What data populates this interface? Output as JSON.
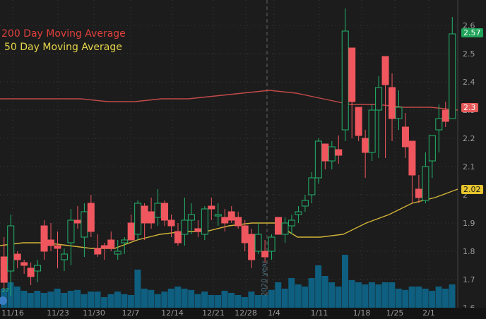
{
  "legend": {
    "ma200_label": "200 Day Moving Average",
    "ma50_label": "50 Day Moving Average",
    "ma200_color": "#e0403c",
    "ma50_color": "#e6d54a"
  },
  "price_tags": {
    "last": "2.57",
    "ma200": "2.3",
    "ma50": "2.02",
    "last_color": "#1fa35a",
    "ma200_color": "#e65a5a",
    "ma50_color": "#e6c42e"
  },
  "year_marker": "2020 year",
  "badge_text": ".27",
  "colors": {
    "background": "#1c1c1c",
    "up": "#22b36b",
    "down": "#f0565e",
    "volume": "#0e5f80",
    "grid": "#3a3a3a"
  },
  "chart_data": {
    "type": "candlestick",
    "title": "",
    "xlabel": "",
    "ylabel": "",
    "ylim": [
      1.6,
      2.65
    ],
    "y_ticks": [
      "2.6",
      "2.5",
      "2.4",
      "2.3",
      "2.2",
      "2.1",
      "2",
      "1.9",
      "1.8",
      "1.7",
      "1.6"
    ],
    "x_ticks": [
      "11/16",
      "11/23",
      "11/30",
      "12/7",
      "12/14",
      "12/21",
      "12/28",
      "1/4",
      "1/11",
      "1/18",
      "1/25",
      "2/1"
    ],
    "grid": true,
    "legend_position": "top-left",
    "candles": [
      {
        "o": 1.78,
        "h": 1.85,
        "l": 1.66,
        "c": 1.69
      },
      {
        "o": 1.73,
        "h": 1.93,
        "l": 1.64,
        "c": 1.89
      },
      {
        "o": 1.79,
        "h": 1.8,
        "l": 1.74,
        "c": 1.77
      },
      {
        "o": 1.76,
        "h": 1.77,
        "l": 1.72,
        "c": 1.75
      },
      {
        "o": 1.74,
        "h": 1.76,
        "l": 1.68,
        "c": 1.71
      },
      {
        "o": 1.73,
        "h": 1.77,
        "l": 1.69,
        "c": 1.75
      },
      {
        "o": 1.89,
        "h": 1.91,
        "l": 1.77,
        "c": 1.8
      },
      {
        "o": 1.84,
        "h": 1.9,
        "l": 1.8,
        "c": 1.82
      },
      {
        "o": 1.82,
        "h": 1.87,
        "l": 1.74,
        "c": 1.81
      },
      {
        "o": 1.77,
        "h": 1.81,
        "l": 1.73,
        "c": 1.79
      },
      {
        "o": 1.83,
        "h": 1.95,
        "l": 1.75,
        "c": 1.91
      },
      {
        "o": 1.91,
        "h": 1.96,
        "l": 1.88,
        "c": 1.9
      },
      {
        "o": 1.85,
        "h": 1.97,
        "l": 1.78,
        "c": 1.94
      },
      {
        "o": 1.97,
        "h": 2.0,
        "l": 1.85,
        "c": 1.87
      },
      {
        "o": 1.81,
        "h": 1.86,
        "l": 1.78,
        "c": 1.79
      },
      {
        "o": 1.82,
        "h": 1.83,
        "l": 1.77,
        "c": 1.81
      },
      {
        "o": 1.84,
        "h": 1.87,
        "l": 1.8,
        "c": 1.81
      },
      {
        "o": 1.79,
        "h": 1.84,
        "l": 1.77,
        "c": 1.8
      },
      {
        "o": 1.83,
        "h": 1.85,
        "l": 1.79,
        "c": 1.84
      },
      {
        "o": 1.9,
        "h": 1.93,
        "l": 1.87,
        "c": 1.84
      },
      {
        "o": 1.86,
        "h": 1.98,
        "l": 1.84,
        "c": 1.97
      },
      {
        "o": 1.96,
        "h": 1.97,
        "l": 1.84,
        "c": 1.9
      },
      {
        "o": 1.94,
        "h": 1.99,
        "l": 1.88,
        "c": 1.9
      },
      {
        "o": 1.92,
        "h": 2.02,
        "l": 1.89,
        "c": 1.97
      },
      {
        "o": 1.97,
        "h": 1.98,
        "l": 1.89,
        "c": 1.91
      },
      {
        "o": 1.91,
        "h": 1.93,
        "l": 1.85,
        "c": 1.89
      },
      {
        "o": 1.87,
        "h": 1.9,
        "l": 1.82,
        "c": 1.83
      },
      {
        "o": 1.86,
        "h": 1.99,
        "l": 1.82,
        "c": 1.91
      },
      {
        "o": 1.91,
        "h": 1.97,
        "l": 1.86,
        "c": 1.93
      },
      {
        "o": 1.88,
        "h": 1.91,
        "l": 1.85,
        "c": 1.87
      },
      {
        "o": 1.86,
        "h": 1.96,
        "l": 1.84,
        "c": 1.95
      },
      {
        "o": 1.96,
        "h": 1.99,
        "l": 1.91,
        "c": 1.95
      },
      {
        "o": 1.93,
        "h": 1.97,
        "l": 1.89,
        "c": 1.93
      },
      {
        "o": 1.92,
        "h": 1.95,
        "l": 1.87,
        "c": 1.9
      },
      {
        "o": 1.94,
        "h": 1.96,
        "l": 1.9,
        "c": 1.91
      },
      {
        "o": 1.92,
        "h": 1.94,
        "l": 1.88,
        "c": 1.89
      },
      {
        "o": 1.89,
        "h": 1.91,
        "l": 1.8,
        "c": 1.83
      },
      {
        "o": 1.86,
        "h": 1.88,
        "l": 1.74,
        "c": 1.77
      },
      {
        "o": 1.8,
        "h": 1.9,
        "l": 1.79,
        "c": 1.86
      },
      {
        "o": 1.8,
        "h": 1.84,
        "l": 1.76,
        "c": 1.78
      },
      {
        "o": 1.8,
        "h": 1.86,
        "l": 1.77,
        "c": 1.85
      },
      {
        "o": 1.92,
        "h": 1.92,
        "l": 1.87,
        "c": 1.86
      },
      {
        "o": 1.86,
        "h": 1.92,
        "l": 1.83,
        "c": 1.9
      },
      {
        "o": 1.89,
        "h": 1.93,
        "l": 1.86,
        "c": 1.91
      },
      {
        "o": 1.93,
        "h": 1.96,
        "l": 1.9,
        "c": 1.94
      },
      {
        "o": 1.96,
        "h": 2.0,
        "l": 1.94,
        "c": 1.98
      },
      {
        "o": 2.0,
        "h": 2.08,
        "l": 1.97,
        "c": 2.06
      },
      {
        "o": 2.06,
        "h": 2.2,
        "l": 2.04,
        "c": 2.19
      },
      {
        "o": 2.18,
        "h": 2.17,
        "l": 2.09,
        "c": 2.12
      },
      {
        "o": 2.12,
        "h": 2.19,
        "l": 2.09,
        "c": 2.17
      },
      {
        "o": 2.16,
        "h": 2.21,
        "l": 2.11,
        "c": 2.14
      },
      {
        "o": 2.23,
        "h": 2.66,
        "l": 2.19,
        "c": 2.58
      },
      {
        "o": 2.52,
        "h": 2.52,
        "l": 2.2,
        "c": 2.33
      },
      {
        "o": 2.31,
        "h": 2.31,
        "l": 2.19,
        "c": 2.21
      },
      {
        "o": 2.2,
        "h": 2.23,
        "l": 2.06,
        "c": 2.15
      },
      {
        "o": 2.15,
        "h": 2.32,
        "l": 2.12,
        "c": 2.3
      },
      {
        "o": 2.3,
        "h": 2.42,
        "l": 2.13,
        "c": 2.38
      },
      {
        "o": 2.49,
        "h": 2.49,
        "l": 2.13,
        "c": 2.39
      },
      {
        "o": 2.38,
        "h": 2.43,
        "l": 2.19,
        "c": 2.27
      },
      {
        "o": 2.27,
        "h": 2.37,
        "l": 2.23,
        "c": 2.31
      },
      {
        "o": 2.24,
        "h": 2.29,
        "l": 2.13,
        "c": 2.17
      },
      {
        "o": 2.19,
        "h": 2.19,
        "l": 1.97,
        "c": 2.07
      },
      {
        "o": 2.02,
        "h": 2.07,
        "l": 1.97,
        "c": 1.99
      },
      {
        "o": 1.98,
        "h": 2.15,
        "l": 1.97,
        "c": 2.1
      },
      {
        "o": 2.12,
        "h": 2.21,
        "l": 2.06,
        "c": 2.21
      },
      {
        "o": 2.23,
        "h": 2.32,
        "l": 2.15,
        "c": 2.27
      },
      {
        "o": 2.3,
        "h": 2.33,
        "l": 2.24,
        "c": 2.26
      },
      {
        "o": 2.27,
        "h": 2.63,
        "l": 2.27,
        "c": 2.57
      }
    ],
    "series": [
      {
        "name": "200 Day Moving Average",
        "values": [
          2.34,
          2.34,
          2.34,
          2.34,
          2.33,
          2.33,
          2.34,
          2.34,
          2.35,
          2.36,
          2.37,
          2.36,
          2.34,
          2.32,
          2.32,
          2.31,
          2.31,
          2.3
        ]
      },
      {
        "name": "50 Day Moving Average",
        "values": [
          1.82,
          1.83,
          1.83,
          1.82,
          1.81,
          1.81,
          1.84,
          1.86,
          1.87,
          1.87,
          1.89,
          1.9,
          1.9,
          1.85,
          1.85,
          1.86,
          1.9,
          1.93,
          1.97,
          1.99,
          2.02
        ]
      }
    ],
    "volume": [
      0.45,
      0.6,
      0.5,
      0.4,
      0.35,
      0.4,
      0.35,
      0.38,
      0.45,
      0.35,
      0.4,
      0.42,
      0.32,
      0.38,
      0.38,
      0.25,
      0.32,
      0.38,
      0.32,
      0.3,
      0.9,
      0.45,
      0.42,
      0.32,
      0.38,
      0.45,
      0.5,
      0.45,
      0.42,
      0.32,
      0.38,
      0.3,
      0.3,
      0.4,
      0.35,
      0.3,
      0.25,
      0.38,
      0.3,
      0.3,
      0.42,
      0.6,
      0.45,
      0.7,
      0.55,
      0.5,
      0.7,
      1.0,
      0.75,
      0.6,
      0.5,
      1.25,
      0.65,
      0.6,
      0.55,
      0.6,
      0.55,
      0.6,
      0.6,
      0.45,
      0.42,
      0.5,
      0.5,
      0.45,
      0.4,
      0.5,
      0.45,
      0.55
    ]
  }
}
